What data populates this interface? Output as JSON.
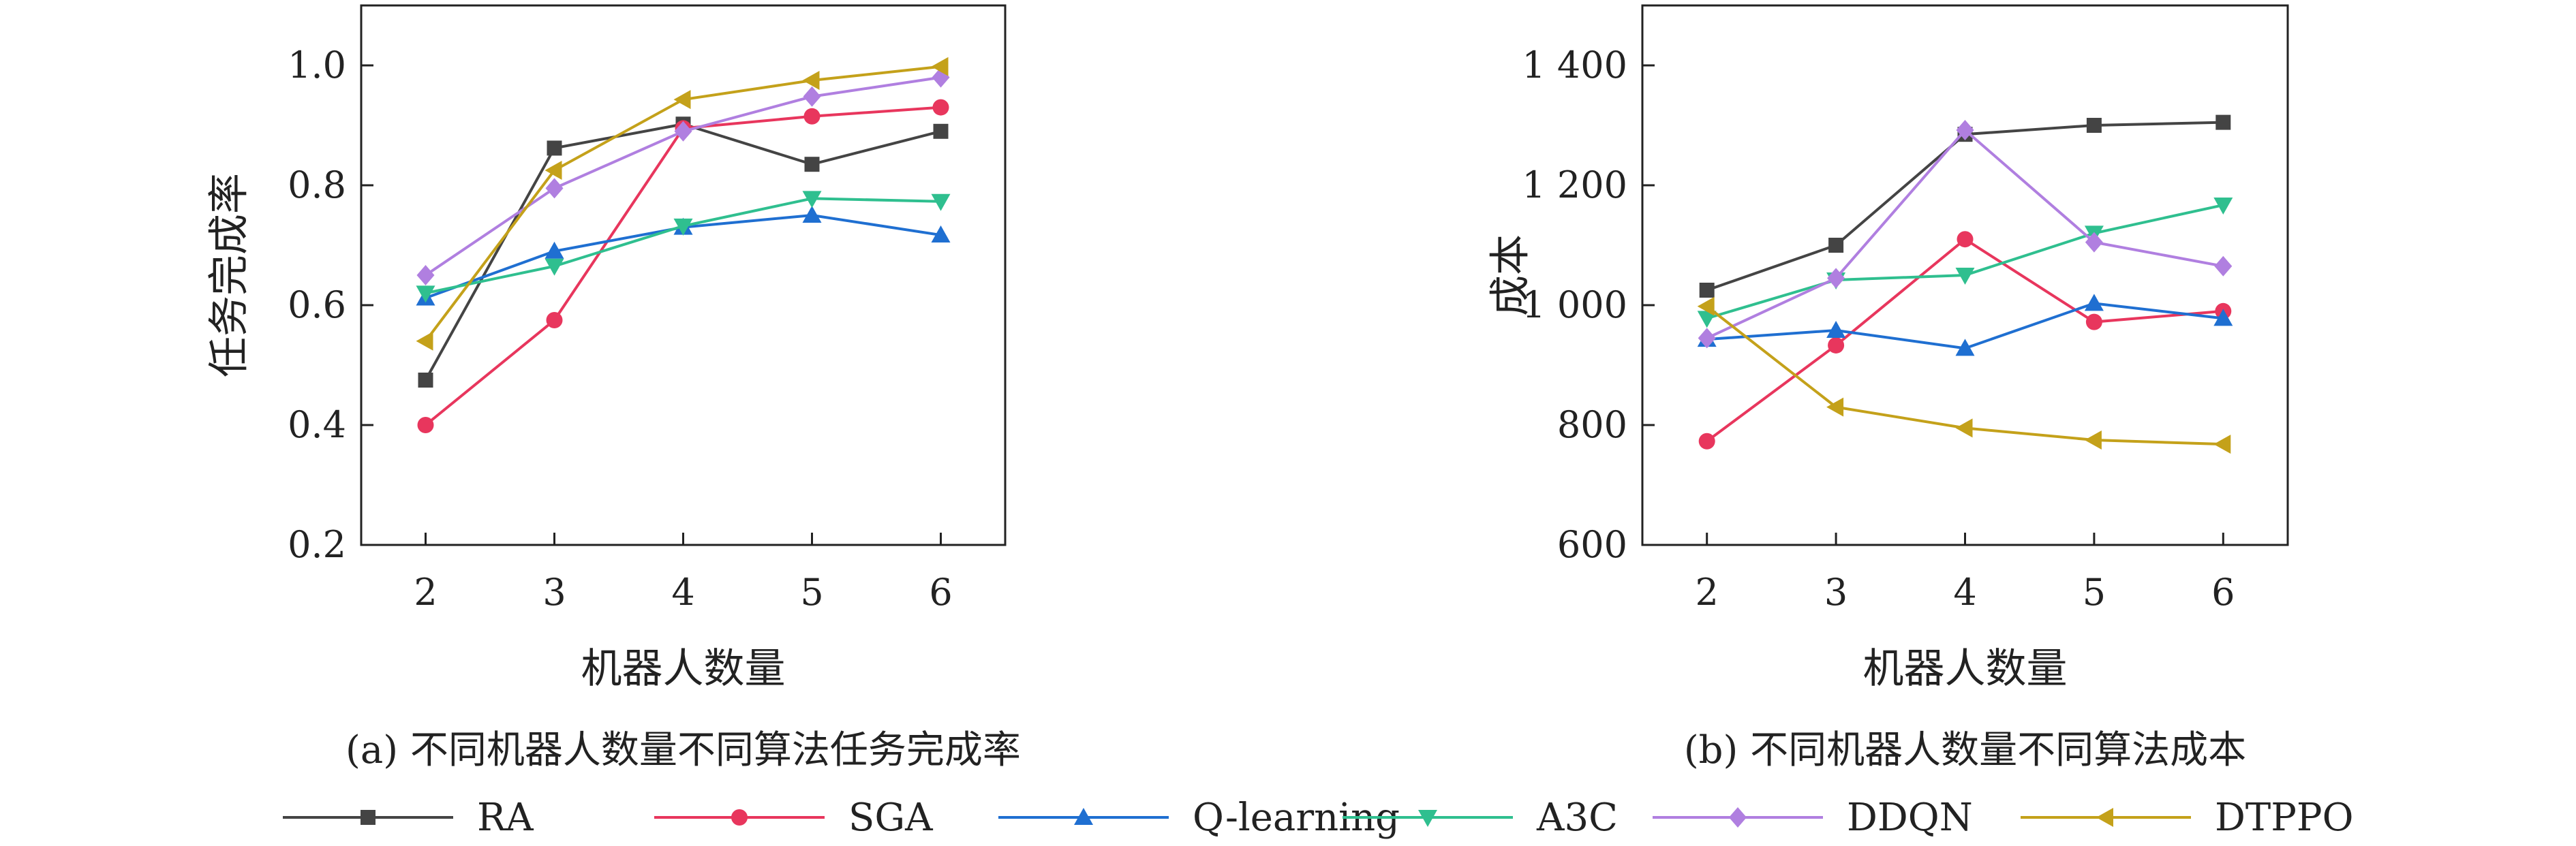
{
  "legend": [
    {
      "name": "RA",
      "color": "#444444",
      "marker": "square"
    },
    {
      "name": "SGA",
      "color": "#e8365d",
      "marker": "circle"
    },
    {
      "name": "Q-learning",
      "color": "#1f6fd1",
      "marker": "triangle-up"
    },
    {
      "name": "A3C",
      "color": "#2fbf8f",
      "marker": "triangle-down"
    },
    {
      "name": "DDQN",
      "color": "#b07fe0",
      "marker": "diamond"
    },
    {
      "name": "DTPPO",
      "color": "#c4a11a",
      "marker": "triangle-left"
    }
  ],
  "chart_data": [
    {
      "type": "line",
      "caption": "(a) 不同机器人数量不同算法任务完成率",
      "xlabel": "机器人数量",
      "ylabel": "任务完成率",
      "x": [
        2,
        3,
        4,
        5,
        6
      ],
      "xticks": [
        "2",
        "3",
        "4",
        "5",
        "6"
      ],
      "xlim": [
        1.5,
        6.5
      ],
      "ylim": [
        0.2,
        1.1
      ],
      "yticks": [
        0.2,
        0.4,
        0.6,
        0.8,
        1.0
      ],
      "ytick_labels": [
        "0.2",
        "0.4",
        "0.6",
        "0.8",
        "1.0"
      ],
      "series": [
        {
          "name": "RA",
          "values": [
            0.475,
            0.862,
            0.902,
            0.835,
            0.89
          ]
        },
        {
          "name": "SGA",
          "values": [
            0.4,
            0.575,
            0.895,
            0.915,
            0.93
          ]
        },
        {
          "name": "Q-learning",
          "values": [
            0.612,
            0.69,
            0.73,
            0.75,
            0.717
          ]
        },
        {
          "name": "A3C",
          "values": [
            0.62,
            0.665,
            0.732,
            0.778,
            0.773
          ]
        },
        {
          "name": "DDQN",
          "values": [
            0.65,
            0.795,
            0.89,
            0.948,
            0.98
          ]
        },
        {
          "name": "DTPPO",
          "values": [
            0.54,
            0.825,
            0.943,
            0.975,
            0.998
          ]
        }
      ]
    },
    {
      "type": "line",
      "caption": "(b) 不同机器人数量不同算法成本",
      "xlabel": "机器人数量",
      "ylabel": "成本",
      "x": [
        2,
        3,
        4,
        5,
        6
      ],
      "xticks": [
        "2",
        "3",
        "4",
        "5",
        "6"
      ],
      "xlim": [
        1.5,
        6.5
      ],
      "ylim": [
        600,
        1500
      ],
      "yticks": [
        600,
        800,
        1000,
        1200,
        1400
      ],
      "ytick_labels": [
        "600",
        "800",
        "1 000",
        "1 200",
        "1 400"
      ],
      "series": [
        {
          "name": "RA",
          "values": [
            1025,
            1100,
            1285,
            1300,
            1305
          ]
        },
        {
          "name": "SGA",
          "values": [
            773,
            933,
            1110,
            972,
            990
          ]
        },
        {
          "name": "Q-learning",
          "values": [
            943,
            958,
            928,
            1003,
            978
          ]
        },
        {
          "name": "A3C",
          "values": [
            978,
            1042,
            1050,
            1120,
            1167
          ]
        },
        {
          "name": "DDQN",
          "values": [
            945,
            1045,
            1292,
            1105,
            1065
          ]
        },
        {
          "name": "DTPPO",
          "values": [
            998,
            830,
            795,
            775,
            768
          ]
        }
      ]
    }
  ]
}
